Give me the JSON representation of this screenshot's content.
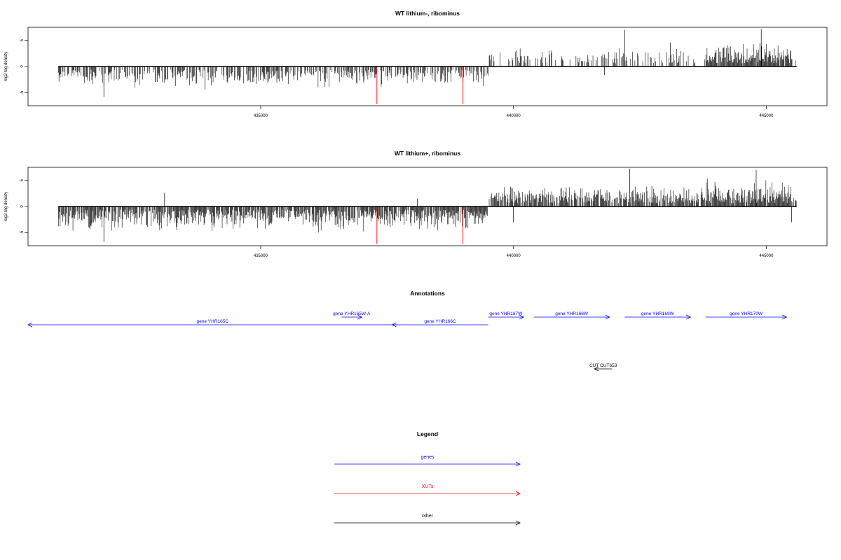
{
  "chart_data": [
    {
      "type": "bar",
      "title": "WT lithium-, ribominus",
      "ylabel": "log2 tag density",
      "xlim": [
        430400,
        446200
      ],
      "ylim": [
        -7.5,
        7.5
      ],
      "xticks": [
        435000,
        440000,
        445000
      ],
      "yticks": [
        5,
        0,
        -5
      ],
      "xrange": [
        431000,
        445600
      ],
      "baseline_span": [
        431000,
        445600
      ],
      "minus_strand_span": [
        431000,
        439500
      ],
      "plus_strand_span": [
        439500,
        445600
      ],
      "minus_amp": 2.4,
      "plus_amp": 2.2,
      "minus_density": 0.55,
      "plus_density": 0.35,
      "dense_regions": [
        [
          443800,
          445500
        ]
      ],
      "minus_outliers": [
        {
          "x": 431900,
          "y": -5.8
        },
        {
          "x": 433900,
          "y": -4.4
        },
        {
          "x": 441800,
          "y": -1.6
        }
      ],
      "plus_outliers": [
        {
          "x": 442200,
          "y": 7.0
        },
        {
          "x": 444900,
          "y": 7.2
        },
        {
          "x": 443100,
          "y": 4.6
        }
      ],
      "red_marks": [
        {
          "x": 437300,
          "y": -7.2
        },
        {
          "x": 439000,
          "y": -7.2
        }
      ],
      "seed": 11
    },
    {
      "type": "bar",
      "title": "WT lithium+, ribominus",
      "ylabel": "log2 tag density",
      "xlim": [
        430400,
        446200
      ],
      "ylim": [
        -7.5,
        7.5
      ],
      "xticks": [
        435000,
        440000,
        445000
      ],
      "yticks": [
        5,
        0,
        -5
      ],
      "xrange": [
        431000,
        445600
      ],
      "baseline_span": [
        431000,
        445600
      ],
      "minus_strand_span": [
        431000,
        439500
      ],
      "plus_strand_span": [
        439500,
        445600
      ],
      "minus_amp": 3.0,
      "plus_amp": 2.6,
      "minus_density": 0.85,
      "plus_density": 0.8,
      "dense_regions": [
        [
          443800,
          445500
        ]
      ],
      "minus_outliers": [
        {
          "x": 431900,
          "y": -6.8
        },
        {
          "x": 440000,
          "y": -3.0
        },
        {
          "x": 445500,
          "y": -3.0
        }
      ],
      "plus_outliers": [
        {
          "x": 433100,
          "y": 2.6
        },
        {
          "x": 442300,
          "y": 7.2
        },
        {
          "x": 444800,
          "y": 7.0
        },
        {
          "x": 438100,
          "y": 1.5
        }
      ],
      "red_marks": [
        {
          "x": 437300,
          "y": -7.2
        },
        {
          "x": 439000,
          "y": -7.2
        }
      ],
      "seed": 29
    }
  ],
  "annotations": {
    "title": "Annotations",
    "genes": [
      {
        "label": "gene YHR165C",
        "start": 430400,
        "end": 437700,
        "strand": "-",
        "row": 1,
        "color": "#0000ff"
      },
      {
        "label": "gene YHR165W-A",
        "start": 436600,
        "end": 437000,
        "strand": "+",
        "row": 0,
        "color": "#0000ff"
      },
      {
        "label": "gene YHR166C",
        "start": 437600,
        "end": 439500,
        "strand": "-",
        "row": 1,
        "color": "#0000ff"
      },
      {
        "label": "gene YHR167W",
        "start": 439500,
        "end": 440200,
        "strand": "+",
        "row": 0,
        "color": "#0000ff"
      },
      {
        "label": "gene YHR168W",
        "start": 440400,
        "end": 441900,
        "strand": "+",
        "row": 0,
        "color": "#0000ff"
      },
      {
        "label": "gene YHR169W",
        "start": 442200,
        "end": 443500,
        "strand": "+",
        "row": 0,
        "color": "#0000ff"
      },
      {
        "label": "gene YHR170W",
        "start": 443800,
        "end": 445400,
        "strand": "+",
        "row": 0,
        "color": "#0000ff"
      },
      {
        "label": "CUT CUT653",
        "start": 441600,
        "end": 441950,
        "strand": "-",
        "row": 2,
        "color": "#000000"
      }
    ]
  },
  "legend": {
    "title": "Legend",
    "items": [
      {
        "label": "genes",
        "color": "#0000ff"
      },
      {
        "label": "XUTs",
        "color": "#ff0000"
      },
      {
        "label": "other",
        "color": "#000000"
      }
    ]
  }
}
